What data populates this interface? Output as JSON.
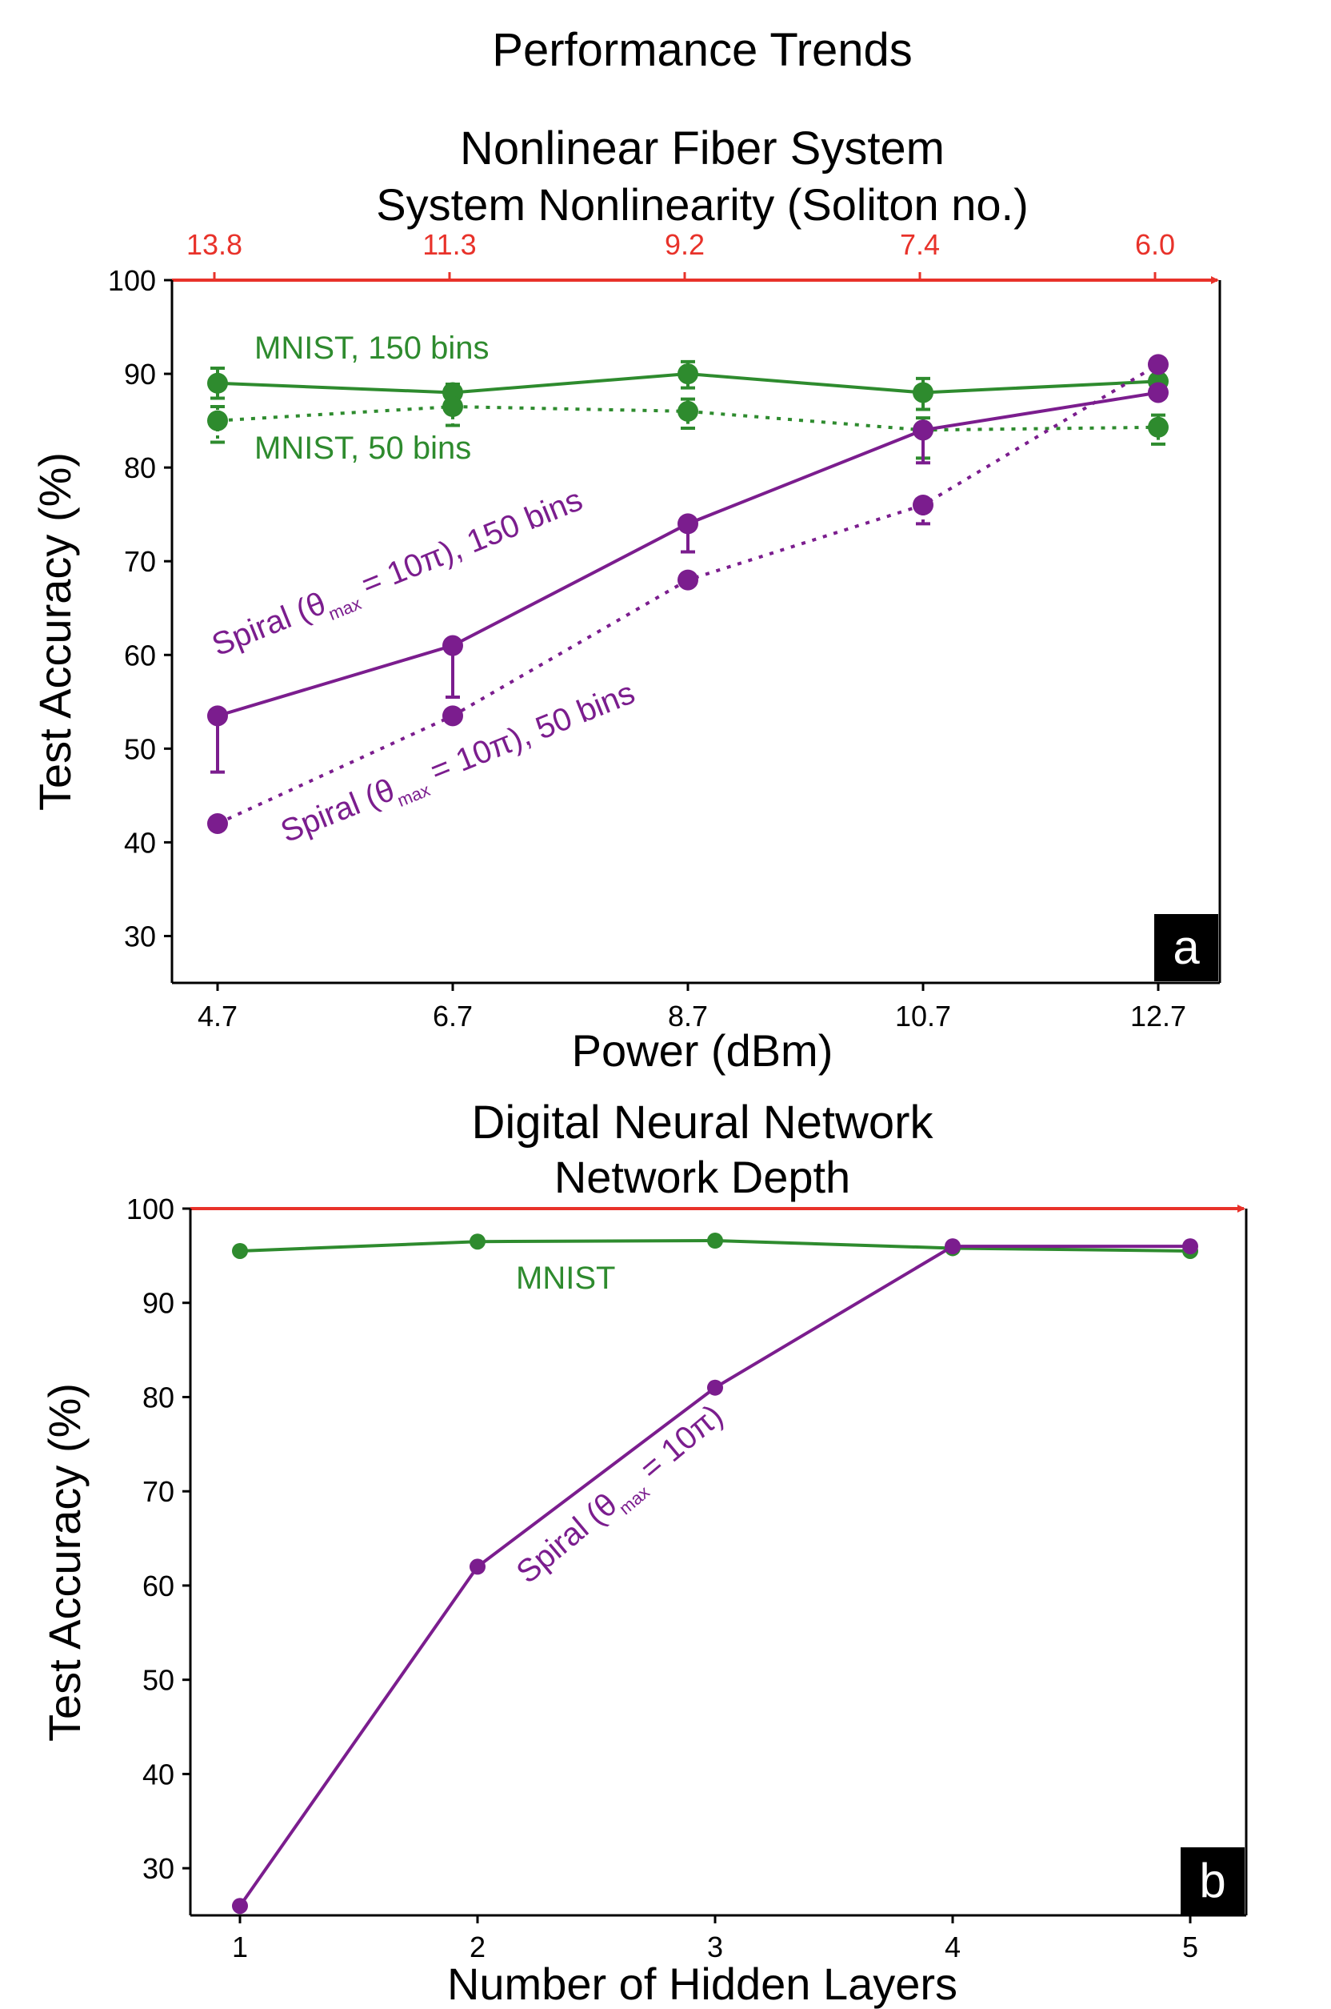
{
  "figure_title": "Performance Trends",
  "colors": {
    "green": "#2e8b2e",
    "purple": "#7b1d8e",
    "red": "#e8322a",
    "black": "#000000"
  },
  "chart_data": [
    {
      "type": "line",
      "panel": "a",
      "title": "Nonlinear Fiber System",
      "xlabel": "Power (dBm)",
      "ylabel": "Test Accuracy (%)",
      "secondary_xlabel": "System Nonlinearity (Soliton no.)",
      "categories": [
        "4.7",
        "6.7",
        "8.7",
        "10.7",
        "12.7"
      ],
      "secondary_categories": [
        "13.8",
        "11.3",
        "9.2",
        "7.4",
        "6.0"
      ],
      "ylim": [
        25,
        100
      ],
      "yticks": [
        30,
        40,
        50,
        60,
        70,
        80,
        90,
        100
      ],
      "series": [
        {
          "name": "MNIST, 150 bins",
          "color": "green",
          "style": "solid",
          "values": [
            89,
            88,
            90,
            88,
            89.2
          ],
          "err_up": [
            1.6,
            0.9,
            1.3,
            1.5,
            1.2
          ],
          "err_down": [
            1.6,
            0.9,
            1.5,
            1.8,
            1.2
          ]
        },
        {
          "name": "MNIST, 50 bins",
          "color": "green",
          "style": "dotted",
          "values": [
            85,
            86.5,
            86,
            84,
            84.3
          ],
          "err_up": [
            1.5,
            1.3,
            1.3,
            1.3,
            1.3
          ],
          "err_down": [
            2.3,
            2.0,
            1.8,
            3.0,
            1.8
          ]
        },
        {
          "name": "Spiral (θmax = 10π), 150 bins",
          "color": "purple",
          "style": "solid",
          "values": [
            53.5,
            61,
            74,
            84,
            88
          ],
          "err_up": [
            0,
            0,
            0,
            0,
            0
          ],
          "err_down": [
            6,
            5.5,
            3,
            3.5,
            0
          ]
        },
        {
          "name": "Spiral (θmax = 10π), 50 bins",
          "color": "purple",
          "style": "dotted",
          "values": [
            42,
            53.5,
            68,
            76,
            91
          ],
          "err_up": [
            0,
            0,
            0,
            0,
            0
          ],
          "err_down": [
            0,
            0,
            0,
            2,
            0
          ]
        }
      ],
      "annotations": {
        "mnist150": "MNIST, 150 bins",
        "mnist50": "MNIST, 50 bins",
        "spiral150_pre": "Spiral (θ",
        "spiral150_sub": "max",
        "spiral150_post": " = 10π), 150 bins",
        "spiral50_pre": "Spiral (θ",
        "spiral50_sub": "max",
        "spiral50_post": " = 10π), 50 bins"
      }
    },
    {
      "type": "line",
      "panel": "b",
      "title": "Digital Neural Network",
      "xlabel": "Number of Hidden Layers",
      "ylabel": "Test Accuracy (%)",
      "secondary_xlabel": "Network Depth",
      "categories": [
        "1",
        "2",
        "3",
        "4",
        "5"
      ],
      "ylim": [
        25,
        100
      ],
      "yticks": [
        30,
        40,
        50,
        60,
        70,
        80,
        90,
        100
      ],
      "series": [
        {
          "name": "MNIST",
          "color": "green",
          "style": "solid",
          "values": [
            95.5,
            96.5,
            96.6,
            95.8,
            95.5
          ]
        },
        {
          "name": "Spiral (θmax = 10π)",
          "color": "purple",
          "style": "solid",
          "values": [
            26,
            62,
            81,
            96,
            96
          ]
        }
      ],
      "annotations": {
        "mnist": "MNIST",
        "spiral_pre": "Spiral (θ",
        "spiral_sub": "max",
        "spiral_post": " = 10π)"
      }
    }
  ]
}
